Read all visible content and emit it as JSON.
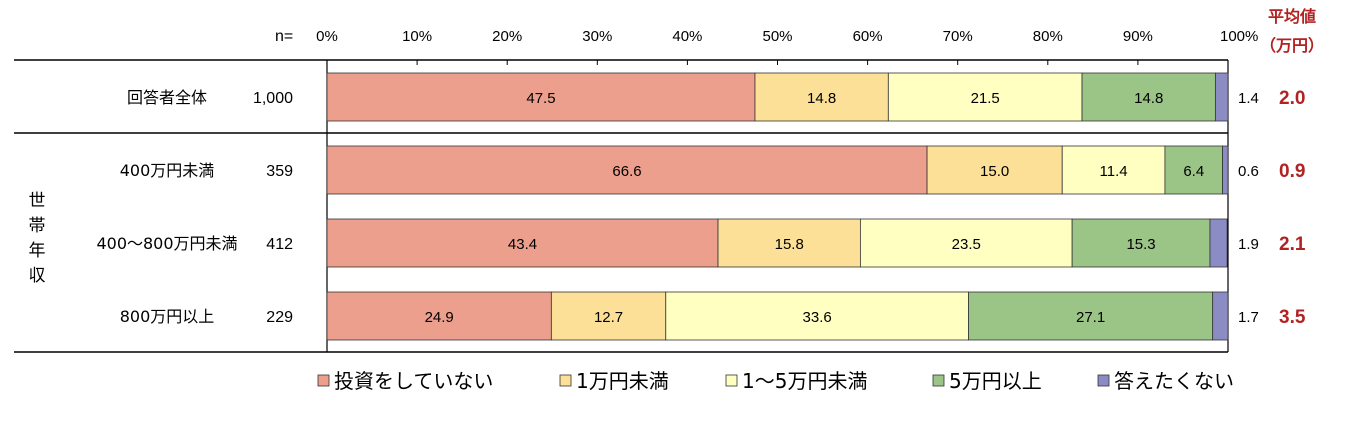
{
  "chart_data": {
    "type": "stacked-bar-horizontal",
    "n_header": "n=",
    "avg_header": [
      "平均値",
      "（万円）"
    ],
    "x_ticks": [
      "0%",
      "10%",
      "20%",
      "30%",
      "40%",
      "50%",
      "60%",
      "70%",
      "80%",
      "90%",
      "100%"
    ],
    "xlim": [
      0,
      100
    ],
    "group_label": "世帯年収",
    "series": [
      {
        "name": "投資をしていない",
        "color": "#ec9f8c"
      },
      {
        "name": "1万円未満",
        "color": "#fde098"
      },
      {
        "name": "1～5万円未満",
        "color": "#ffffc2"
      },
      {
        "name": "5万円以上",
        "color": "#9bc487"
      },
      {
        "name": "答えたくない",
        "color": "#8c8cc4"
      }
    ],
    "rows": [
      {
        "label": "回答者全体",
        "n": "1,000",
        "values": [
          47.5,
          14.8,
          21.5,
          14.8,
          1.4
        ],
        "labels": [
          "47.5",
          "14.8",
          "21.5",
          "14.8",
          ""
        ],
        "outside_label": "1.4",
        "avg": "2.0"
      },
      {
        "label": "400万円未満",
        "n": "359",
        "values": [
          66.6,
          15.0,
          11.4,
          6.4,
          0.6
        ],
        "labels": [
          "66.6",
          "15.0",
          "11.4",
          "6.4",
          ""
        ],
        "outside_label": "0.6",
        "avg": "0.9"
      },
      {
        "label": "400～800万円未満",
        "n": "412",
        "values": [
          43.4,
          15.8,
          23.5,
          15.3,
          1.9
        ],
        "labels": [
          "43.4",
          "15.8",
          "23.5",
          "15.3",
          ""
        ],
        "outside_label": "1.9",
        "avg": "2.1"
      },
      {
        "label": "800万円以上",
        "n": "229",
        "values": [
          24.9,
          12.7,
          33.6,
          27.1,
          1.7
        ],
        "labels": [
          "24.9",
          "12.7",
          "33.6",
          "27.1",
          ""
        ],
        "outside_label": "1.7",
        "avg": "3.5"
      }
    ]
  }
}
